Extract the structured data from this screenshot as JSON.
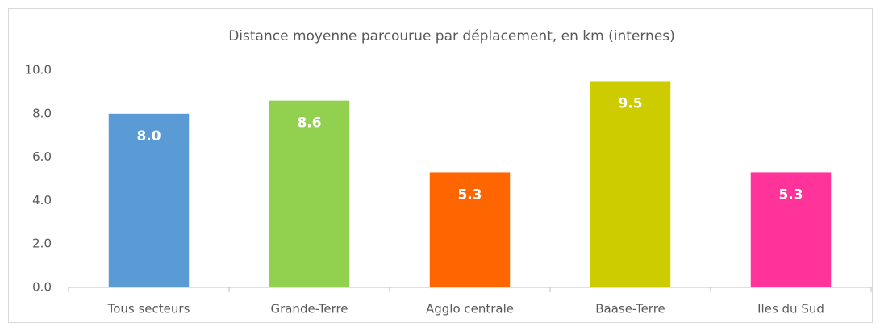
{
  "chart_data": {
    "type": "bar",
    "title": "Distance moyenne parcourue par déplacement, en km (internes)",
    "categories": [
      "Tous secteurs",
      "Grande-Terre",
      "Agglo centrale",
      "Baase-Terre",
      "Iles du Sud"
    ],
    "values": [
      8.0,
      8.6,
      5.3,
      9.5,
      5.3
    ],
    "value_labels": [
      "8.0",
      "8.6",
      "5.3",
      "9.5",
      "5.3"
    ],
    "colors": [
      "#5b9bd5",
      "#92d050",
      "#ff6600",
      "#cccc00",
      "#ff3399"
    ],
    "ylim": [
      0,
      10
    ],
    "yticks": [
      {
        "value": 0,
        "label": "0.0"
      },
      {
        "value": 2,
        "label": "2.0"
      },
      {
        "value": 4,
        "label": "4.0"
      },
      {
        "value": 6,
        "label": "6.0"
      },
      {
        "value": 8,
        "label": "8.0"
      },
      {
        "value": 10,
        "label": "10.0"
      }
    ],
    "grid": false
  }
}
